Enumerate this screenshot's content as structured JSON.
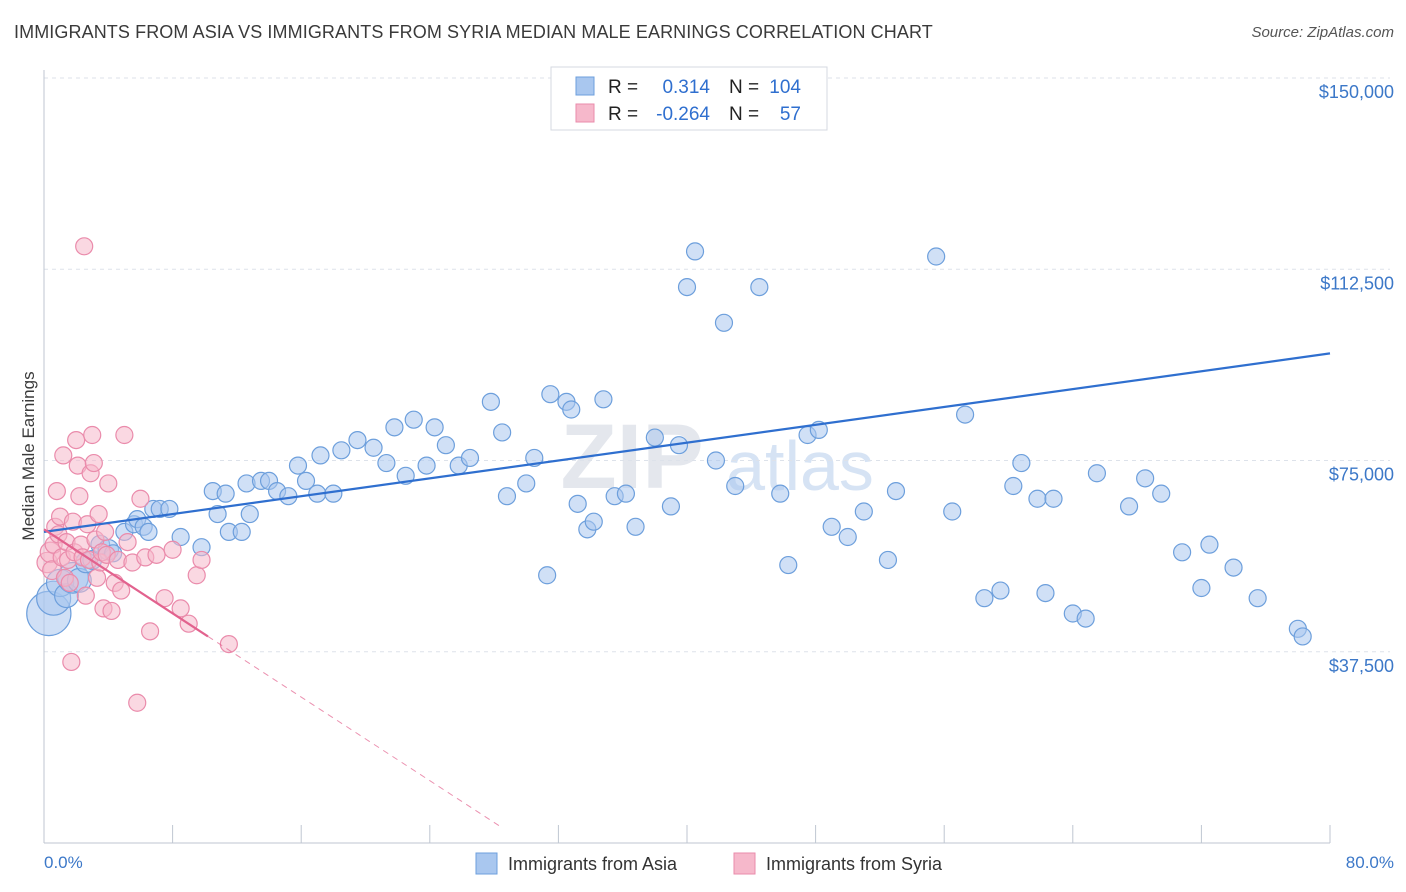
{
  "title": "IMMIGRANTS FROM ASIA VS IMMIGRANTS FROM SYRIA MEDIAN MALE EARNINGS CORRELATION CHART",
  "source": "Source: ZipAtlas.com",
  "watermark": {
    "zip": "ZIP",
    "atlas": "atlas"
  },
  "colors": {
    "asia_fill": "#a9c7ef",
    "asia_stroke": "#6d9fdc",
    "asia_line": "#2f6fcf",
    "syria_fill": "#f6b8cb",
    "syria_stroke": "#ea8bab",
    "syria_line": "#e2628e",
    "axis_label_blue": "#3c78c8",
    "grid": "#dde2ea"
  },
  "legend_stats": [
    {
      "r_label": "R =",
      "r_value": "0.314",
      "n_label": "N =",
      "n_value": "104"
    },
    {
      "r_label": "R =",
      "r_value": "-0.264",
      "n_label": "N =",
      "n_value": "57"
    }
  ],
  "bottom_legend": [
    "Immigrants from Asia",
    "Immigrants from Syria"
  ],
  "chart_data": {
    "type": "scatter",
    "xlabel": "",
    "ylabel": "Median Male Earnings",
    "xlim": [
      0,
      80
    ],
    "ylim": [
      0,
      150000
    ],
    "x_tick_labels": [
      "0.0%",
      "80.0%"
    ],
    "y_ticks": [
      37500,
      75000,
      112500,
      150000
    ],
    "y_tick_labels": [
      "$37,500",
      "$75,000",
      "$112,500",
      "$150,000"
    ],
    "grid": true,
    "series": [
      {
        "name": "Immigrants from Asia",
        "trend": {
          "x": [
            0,
            80
          ],
          "y": [
            61000,
            96000
          ],
          "dashed_to": null
        },
        "points": [
          [
            0.3,
            45000,
            26
          ],
          [
            0.6,
            48000,
            20
          ],
          [
            1.0,
            51000,
            16
          ],
          [
            1.4,
            48500,
            14
          ],
          [
            1.8,
            52000,
            18
          ],
          [
            2.2,
            51500,
            14
          ],
          [
            2.6,
            55000,
            12
          ],
          [
            3.0,
            55500,
            11
          ],
          [
            3.5,
            58500,
            11
          ],
          [
            4.0,
            57500,
            12
          ],
          [
            4.3,
            56800,
            10
          ],
          [
            5.0,
            61000,
            10
          ],
          [
            5.6,
            62500,
            10
          ],
          [
            5.8,
            63500,
            10
          ],
          [
            6.2,
            62000,
            10
          ],
          [
            6.5,
            61000,
            10
          ],
          [
            6.8,
            65500,
            10
          ],
          [
            7.2,
            65500,
            10
          ],
          [
            7.8,
            65500,
            10
          ],
          [
            8.5,
            60000,
            10
          ],
          [
            9.8,
            58000,
            10
          ],
          [
            10.5,
            69000,
            10
          ],
          [
            10.8,
            64500,
            10
          ],
          [
            11.3,
            68500,
            10
          ],
          [
            11.5,
            61000,
            10
          ],
          [
            12.3,
            61000,
            10
          ],
          [
            12.6,
            70500,
            10
          ],
          [
            12.8,
            64500,
            10
          ],
          [
            13.5,
            71000,
            10
          ],
          [
            14.0,
            71000,
            10
          ],
          [
            14.5,
            69000,
            10
          ],
          [
            15.2,
            68000,
            10
          ],
          [
            15.8,
            74000,
            10
          ],
          [
            16.3,
            71000,
            10
          ],
          [
            17.0,
            68500,
            10
          ],
          [
            17.2,
            76000,
            10
          ],
          [
            18.0,
            68500,
            10
          ],
          [
            18.5,
            77000,
            10
          ],
          [
            19.5,
            79000,
            10
          ],
          [
            20.5,
            77500,
            10
          ],
          [
            21.3,
            74500,
            10
          ],
          [
            21.8,
            81500,
            10
          ],
          [
            22.5,
            72000,
            10
          ],
          [
            23.0,
            83000,
            10
          ],
          [
            23.8,
            74000,
            10
          ],
          [
            24.3,
            81500,
            10
          ],
          [
            25.0,
            78000,
            10
          ],
          [
            25.8,
            74000,
            10
          ],
          [
            26.5,
            75500,
            10
          ],
          [
            27.8,
            86500,
            10
          ],
          [
            28.5,
            80500,
            10
          ],
          [
            28.8,
            68000,
            10
          ],
          [
            30.0,
            70500,
            10
          ],
          [
            30.5,
            75500,
            10
          ],
          [
            31.3,
            52500,
            10
          ],
          [
            31.5,
            88000,
            10
          ],
          [
            32.5,
            86500,
            10
          ],
          [
            32.8,
            85000,
            10
          ],
          [
            33.2,
            66500,
            10
          ],
          [
            33.8,
            61500,
            10
          ],
          [
            34.2,
            63000,
            10
          ],
          [
            34.8,
            87000,
            10
          ],
          [
            35.5,
            68000,
            10
          ],
          [
            36.2,
            68500,
            10
          ],
          [
            36.8,
            62000,
            10
          ],
          [
            38.0,
            79500,
            10
          ],
          [
            39.0,
            66000,
            10
          ],
          [
            39.5,
            78000,
            10
          ],
          [
            40.0,
            109000,
            10
          ],
          [
            40.5,
            116000,
            10
          ],
          [
            41.8,
            75000,
            10
          ],
          [
            42.3,
            102000,
            10
          ],
          [
            43.0,
            70000,
            10
          ],
          [
            44.5,
            109000,
            10
          ],
          [
            45.8,
            68500,
            10
          ],
          [
            46.3,
            54500,
            10
          ],
          [
            47.5,
            80000,
            10
          ],
          [
            48.2,
            81000,
            10
          ],
          [
            49.0,
            62000,
            10
          ],
          [
            50.0,
            60000,
            10
          ],
          [
            51.0,
            65000,
            10
          ],
          [
            52.5,
            55500,
            10
          ],
          [
            53.0,
            69000,
            10
          ],
          [
            55.5,
            115000,
            10
          ],
          [
            56.5,
            65000,
            10
          ],
          [
            57.3,
            84000,
            10
          ],
          [
            58.5,
            48000,
            10
          ],
          [
            59.5,
            49500,
            10
          ],
          [
            60.3,
            70000,
            10
          ],
          [
            60.8,
            74500,
            10
          ],
          [
            61.8,
            67500,
            10
          ],
          [
            62.3,
            49000,
            10
          ],
          [
            62.8,
            67500,
            10
          ],
          [
            64.0,
            45000,
            10
          ],
          [
            64.8,
            44000,
            10
          ],
          [
            65.5,
            72500,
            10
          ],
          [
            67.5,
            66000,
            10
          ],
          [
            68.5,
            71500,
            10
          ],
          [
            69.5,
            68500,
            10
          ],
          [
            70.8,
            57000,
            10
          ],
          [
            72.0,
            50000,
            10
          ],
          [
            72.5,
            58500,
            10
          ],
          [
            74.0,
            54000,
            10
          ],
          [
            75.5,
            48000,
            10
          ],
          [
            78.0,
            42000,
            10
          ],
          [
            78.3,
            40500,
            10
          ]
        ]
      },
      {
        "name": "Immigrants from Syria",
        "trend": {
          "x": [
            0,
            10.2
          ],
          "y": [
            61500,
            40500
          ],
          "dashed_to": [
            28.5,
            3000
          ]
        },
        "points": [
          [
            0.2,
            55000,
            12
          ],
          [
            0.4,
            57000,
            12
          ],
          [
            0.5,
            53500,
            11
          ],
          [
            0.6,
            58500,
            10
          ],
          [
            0.7,
            62000,
            10
          ],
          [
            0.8,
            69000,
            10
          ],
          [
            0.9,
            60500,
            10
          ],
          [
            1.0,
            64000,
            10
          ],
          [
            1.1,
            56000,
            10
          ],
          [
            1.2,
            76000,
            10
          ],
          [
            1.3,
            52000,
            10
          ],
          [
            1.4,
            59000,
            10
          ],
          [
            1.5,
            55500,
            10
          ],
          [
            1.6,
            51000,
            10
          ],
          [
            1.7,
            35500,
            10
          ],
          [
            1.8,
            63000,
            10
          ],
          [
            1.9,
            57000,
            10
          ],
          [
            2.0,
            79000,
            10
          ],
          [
            2.1,
            74000,
            10
          ],
          [
            2.2,
            68000,
            10
          ],
          [
            2.3,
            58500,
            10
          ],
          [
            2.4,
            56000,
            10
          ],
          [
            2.5,
            117000,
            10
          ],
          [
            2.6,
            48500,
            10
          ],
          [
            2.7,
            62500,
            10
          ],
          [
            2.8,
            55500,
            10
          ],
          [
            2.9,
            72500,
            10
          ],
          [
            3.0,
            80000,
            10
          ],
          [
            3.1,
            74500,
            10
          ],
          [
            3.2,
            59500,
            10
          ],
          [
            3.3,
            52000,
            10
          ],
          [
            3.4,
            64500,
            10
          ],
          [
            3.5,
            55000,
            10
          ],
          [
            3.6,
            57000,
            10
          ],
          [
            3.7,
            46000,
            10
          ],
          [
            3.8,
            61000,
            10
          ],
          [
            3.9,
            56500,
            10
          ],
          [
            4.0,
            70500,
            10
          ],
          [
            4.2,
            45500,
            10
          ],
          [
            4.4,
            51000,
            10
          ],
          [
            4.6,
            55500,
            10
          ],
          [
            4.8,
            49500,
            10
          ],
          [
            5.0,
            80000,
            10
          ],
          [
            5.2,
            59000,
            10
          ],
          [
            5.5,
            55000,
            10
          ],
          [
            5.8,
            27500,
            10
          ],
          [
            6.0,
            67500,
            10
          ],
          [
            6.3,
            56000,
            10
          ],
          [
            6.6,
            41500,
            10
          ],
          [
            7.0,
            56500,
            10
          ],
          [
            7.5,
            48000,
            10
          ],
          [
            8.0,
            57500,
            10
          ],
          [
            8.5,
            46000,
            10
          ],
          [
            9.0,
            43000,
            10
          ],
          [
            9.5,
            52500,
            10
          ],
          [
            9.8,
            55500,
            10
          ],
          [
            11.5,
            39000,
            10
          ]
        ]
      }
    ]
  }
}
